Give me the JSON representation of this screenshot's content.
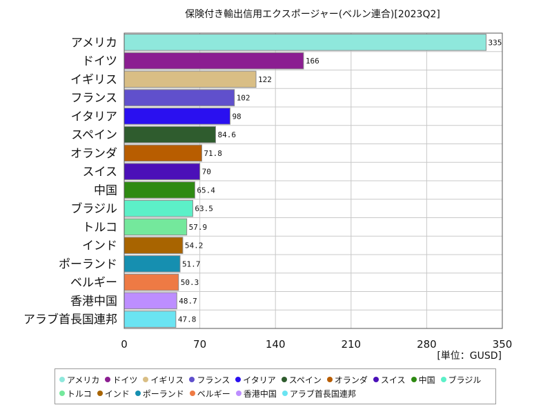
{
  "chart_data": {
    "type": "bar",
    "orientation": "horizontal",
    "title": "保険付き輸出信用エクスポージャー(ベルン連合)[2023Q2]",
    "unit": "[単位：GUSD]",
    "xlim": [
      0,
      350
    ],
    "xticks": [
      "0",
      "70",
      "140",
      "210",
      "280",
      "350"
    ],
    "grid": true,
    "legend_position": "bottom",
    "categories": [
      "アメリカ",
      "ドイツ",
      "イギリス",
      "フランス",
      "イタリア",
      "スペイン",
      "オランダ",
      "スイス",
      "中国",
      "ブラジル",
      "トルコ",
      "インド",
      "ポーランド",
      "ベルギー",
      "香港中国",
      "アラブ首長国連邦"
    ],
    "values": [
      335,
      166,
      122,
      102,
      98,
      84.6,
      71.8,
      70,
      65.4,
      63.5,
      57.9,
      54.2,
      51.7,
      50.3,
      48.7,
      47.8
    ],
    "value_labels": [
      "335",
      "166",
      "122",
      "102",
      "98",
      "84.6",
      "71.8",
      "70",
      "65.4",
      "63.5",
      "57.9",
      "54.2",
      "51.7",
      "50.3",
      "48.7",
      "47.8"
    ],
    "colors": [
      "#8fe8dc",
      "#8b1e91",
      "#d9be85",
      "#6050cc",
      "#2a10f0",
      "#2f5c2e",
      "#b85d00",
      "#4b10b8",
      "#2e8a12",
      "#5cf0c8",
      "#74e89c",
      "#a86400",
      "#168fb0",
      "#ee7a44",
      "#bd8eff",
      "#6ae4f2"
    ],
    "legend_colors": [
      "#8fe8dc",
      "#8b1e91",
      "#d9be85",
      "#6050cc",
      "#2a10f0",
      "#2f5c2e",
      "#b85d00",
      "#4b10b8",
      "#2e8a12",
      "#5cf0c8",
      "#74e89c",
      "#a86400",
      "#168fb0",
      "#ee7a44",
      "#bd8eff",
      "#6ae4f2"
    ]
  }
}
